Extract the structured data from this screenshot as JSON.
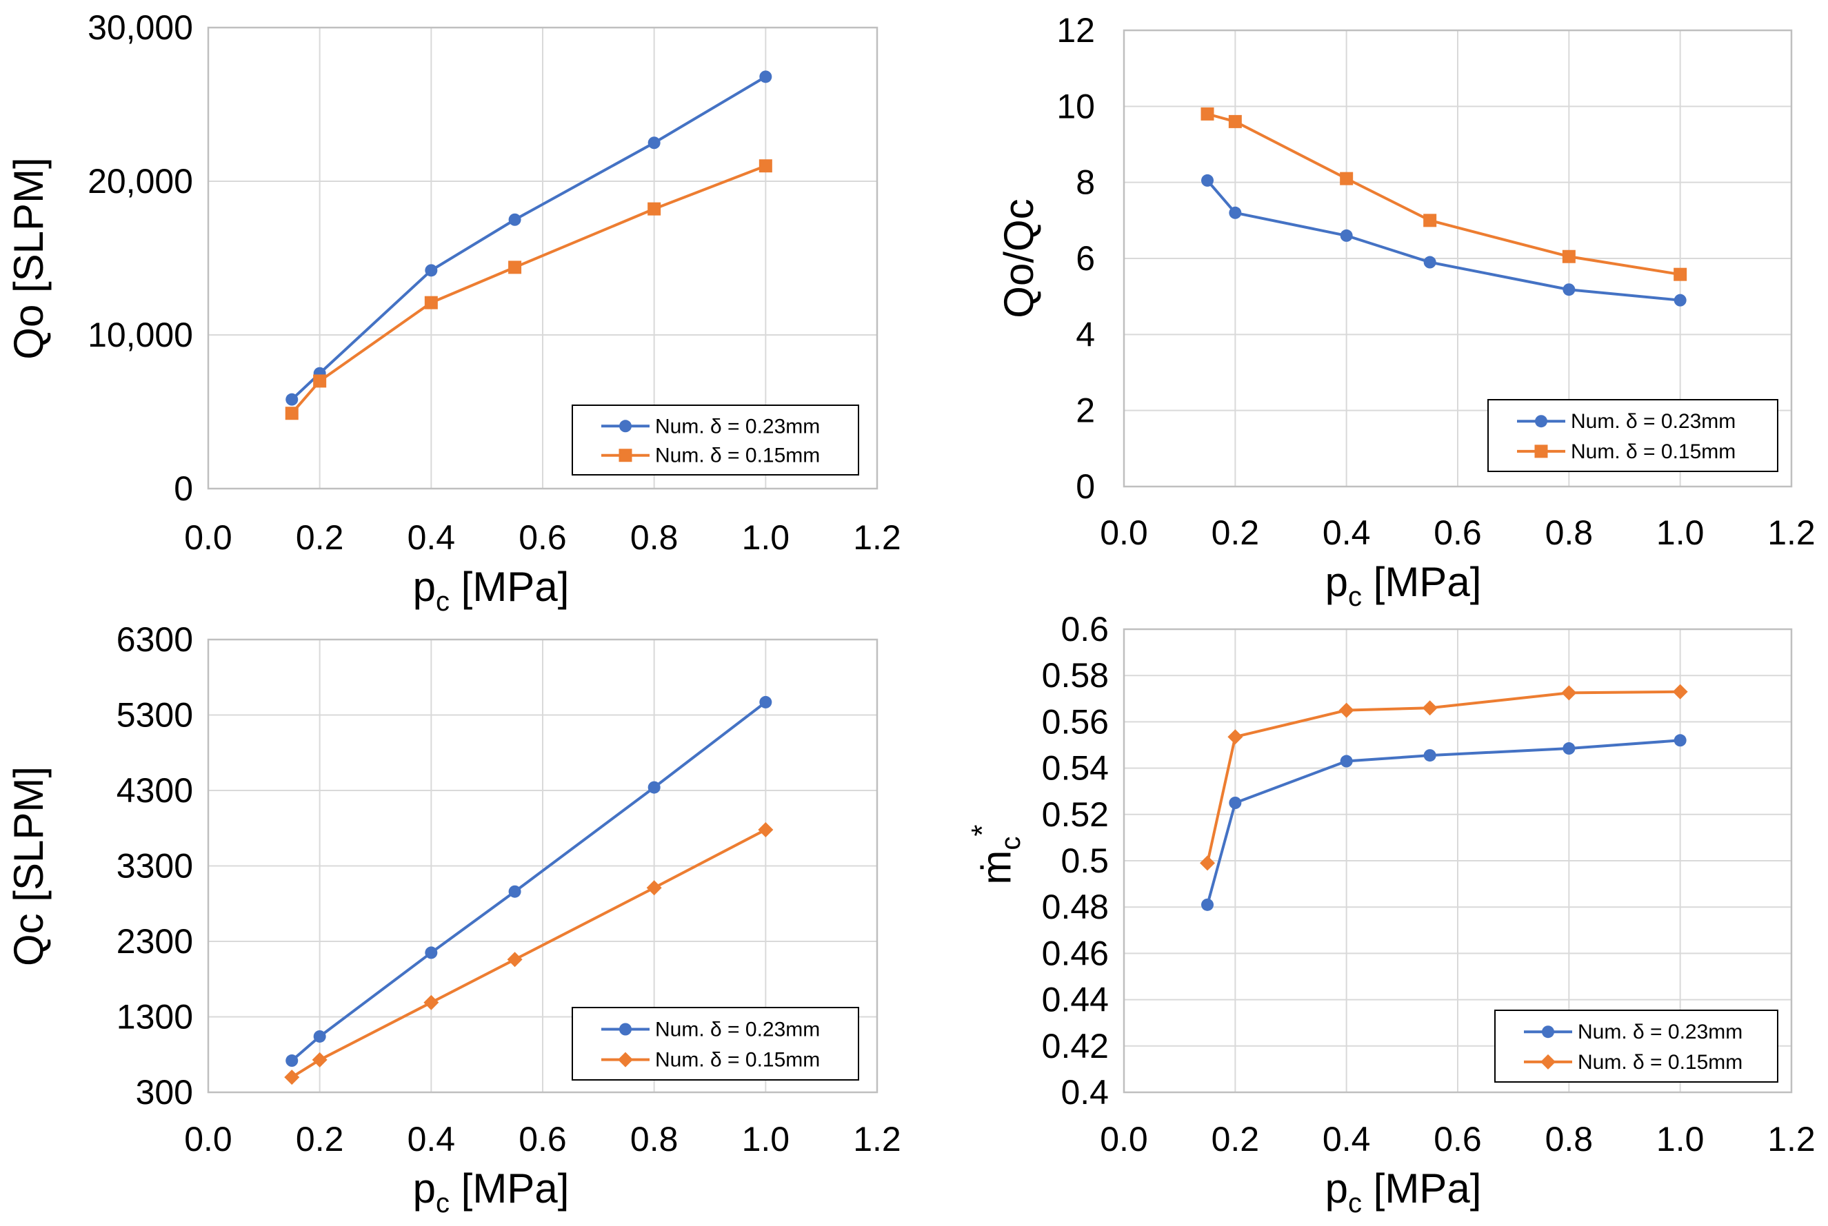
{
  "chart_data": [
    {
      "id": "qo",
      "type": "line",
      "x_label": "p",
      "x_label_sub": "c",
      "x_label_unit": " [MPa]",
      "y_label": "Qo [SLPM]",
      "xlim": [
        0,
        1.2
      ],
      "ylim": [
        0,
        30000
      ],
      "x_ticks": [
        0,
        0.2,
        0.4,
        0.6,
        0.8,
        1.0,
        1.2
      ],
      "x_tick_labels": [
        "0.0",
        "0.2",
        "0.4",
        "0.6",
        "0.8",
        "1.0",
        "1.2"
      ],
      "y_ticks": [
        0,
        10000,
        20000,
        30000
      ],
      "y_tick_labels": [
        "0",
        "10,000",
        "20,000",
        "30,000"
      ],
      "grid": true,
      "legend_position": "bottom-right",
      "series": [
        {
          "name": "Num. δ = 0.23mm",
          "color": "#4472c4",
          "marker": "circle",
          "x": [
            0.15,
            0.2,
            0.4,
            0.55,
            0.8,
            1.0
          ],
          "y": [
            5800,
            7500,
            14200,
            17500,
            22500,
            26800
          ]
        },
        {
          "name": "Num. δ = 0.15mm",
          "color": "#ed7d31",
          "marker": "square",
          "x": [
            0.15,
            0.2,
            0.4,
            0.55,
            0.8,
            1.0
          ],
          "y": [
            4900,
            7000,
            12100,
            14400,
            18200,
            21000
          ]
        }
      ]
    },
    {
      "id": "ratio",
      "type": "line",
      "x_label": "p",
      "x_label_sub": "c",
      "x_label_unit": " [MPa]",
      "y_label": "Qo/Qc",
      "xlim": [
        0,
        1.2
      ],
      "ylim": [
        0,
        12
      ],
      "x_ticks": [
        0,
        0.2,
        0.4,
        0.6,
        0.8,
        1.0,
        1.2
      ],
      "x_tick_labels": [
        "0.0",
        "0.2",
        "0.4",
        "0.6",
        "0.8",
        "1.0",
        "1.2"
      ],
      "y_ticks": [
        0,
        2,
        4,
        6,
        8,
        10,
        12
      ],
      "y_tick_labels": [
        "0",
        "2",
        "4",
        "6",
        "8",
        "10",
        "12"
      ],
      "grid": true,
      "legend_position": "bottom-right",
      "series": [
        {
          "name": "Num. δ = 0.23mm",
          "color": "#4472c4",
          "marker": "circle",
          "x": [
            0.15,
            0.2,
            0.4,
            0.55,
            0.8,
            1.0
          ],
          "y": [
            8.05,
            7.2,
            6.6,
            5.9,
            5.18,
            4.9
          ]
        },
        {
          "name": "Num. δ = 0.15mm",
          "color": "#ed7d31",
          "marker": "square",
          "x": [
            0.15,
            0.2,
            0.4,
            0.55,
            0.8,
            1.0
          ],
          "y": [
            9.8,
            9.6,
            8.1,
            7.0,
            6.05,
            5.58
          ]
        }
      ]
    },
    {
      "id": "qc",
      "type": "line",
      "x_label": "p",
      "x_label_sub": "c",
      "x_label_unit": " [MPa]",
      "y_label": "Qc [SLPM]",
      "xlim": [
        0,
        1.2
      ],
      "ylim": [
        300,
        6300
      ],
      "x_ticks": [
        0,
        0.2,
        0.4,
        0.6,
        0.8,
        1.0,
        1.2
      ],
      "x_tick_labels": [
        "0.0",
        "0.2",
        "0.4",
        "0.6",
        "0.8",
        "1.0",
        "1.2"
      ],
      "y_ticks": [
        300,
        1300,
        2300,
        3300,
        4300,
        5300,
        6300
      ],
      "y_tick_labels": [
        "300",
        "1300",
        "2300",
        "3300",
        "4300",
        "5300",
        "6300"
      ],
      "grid": true,
      "legend_position": "bottom-right",
      "series": [
        {
          "name": "Num. δ = 0.23mm",
          "color": "#4472c4",
          "marker": "circle",
          "x": [
            0.15,
            0.2,
            0.4,
            0.55,
            0.8,
            1.0
          ],
          "y": [
            720,
            1040,
            2150,
            2960,
            4340,
            5470
          ]
        },
        {
          "name": "Num. δ = 0.15mm",
          "color": "#ed7d31",
          "marker": "diamond",
          "x": [
            0.15,
            0.2,
            0.4,
            0.55,
            0.8,
            1.0
          ],
          "y": [
            500,
            730,
            1490,
            2060,
            3010,
            3780
          ]
        }
      ]
    },
    {
      "id": "mdot",
      "type": "line",
      "x_label": "p",
      "x_label_sub": "c",
      "x_label_unit": " [MPa]",
      "y_label": "ṁ",
      "y_label_sub": "c",
      "y_label_sup": "*",
      "xlim": [
        0,
        1.2
      ],
      "ylim": [
        0.4,
        0.6
      ],
      "x_ticks": [
        0,
        0.2,
        0.4,
        0.6,
        0.8,
        1.0,
        1.2
      ],
      "x_tick_labels": [
        "0.0",
        "0.2",
        "0.4",
        "0.6",
        "0.8",
        "1.0",
        "1.2"
      ],
      "y_ticks": [
        0.4,
        0.42,
        0.44,
        0.46,
        0.48,
        0.5,
        0.52,
        0.54,
        0.56,
        0.58,
        0.6
      ],
      "y_tick_labels": [
        "0.4",
        "0.42",
        "0.44",
        "0.46",
        "0.48",
        "0.5",
        "0.52",
        "0.54",
        "0.56",
        "0.58",
        "0.6"
      ],
      "grid": true,
      "legend_position": "bottom-right",
      "series": [
        {
          "name": "Num. δ = 0.23mm",
          "color": "#4472c4",
          "marker": "circle",
          "x": [
            0.15,
            0.2,
            0.4,
            0.55,
            0.8,
            1.0
          ],
          "y": [
            0.481,
            0.525,
            0.543,
            0.5455,
            0.5485,
            0.552
          ]
        },
        {
          "name": "Num. δ = 0.15mm",
          "color": "#ed7d31",
          "marker": "diamond",
          "x": [
            0.15,
            0.2,
            0.4,
            0.55,
            0.8,
            1.0
          ],
          "y": [
            0.499,
            0.5535,
            0.565,
            0.566,
            0.5725,
            0.573
          ]
        }
      ]
    }
  ]
}
